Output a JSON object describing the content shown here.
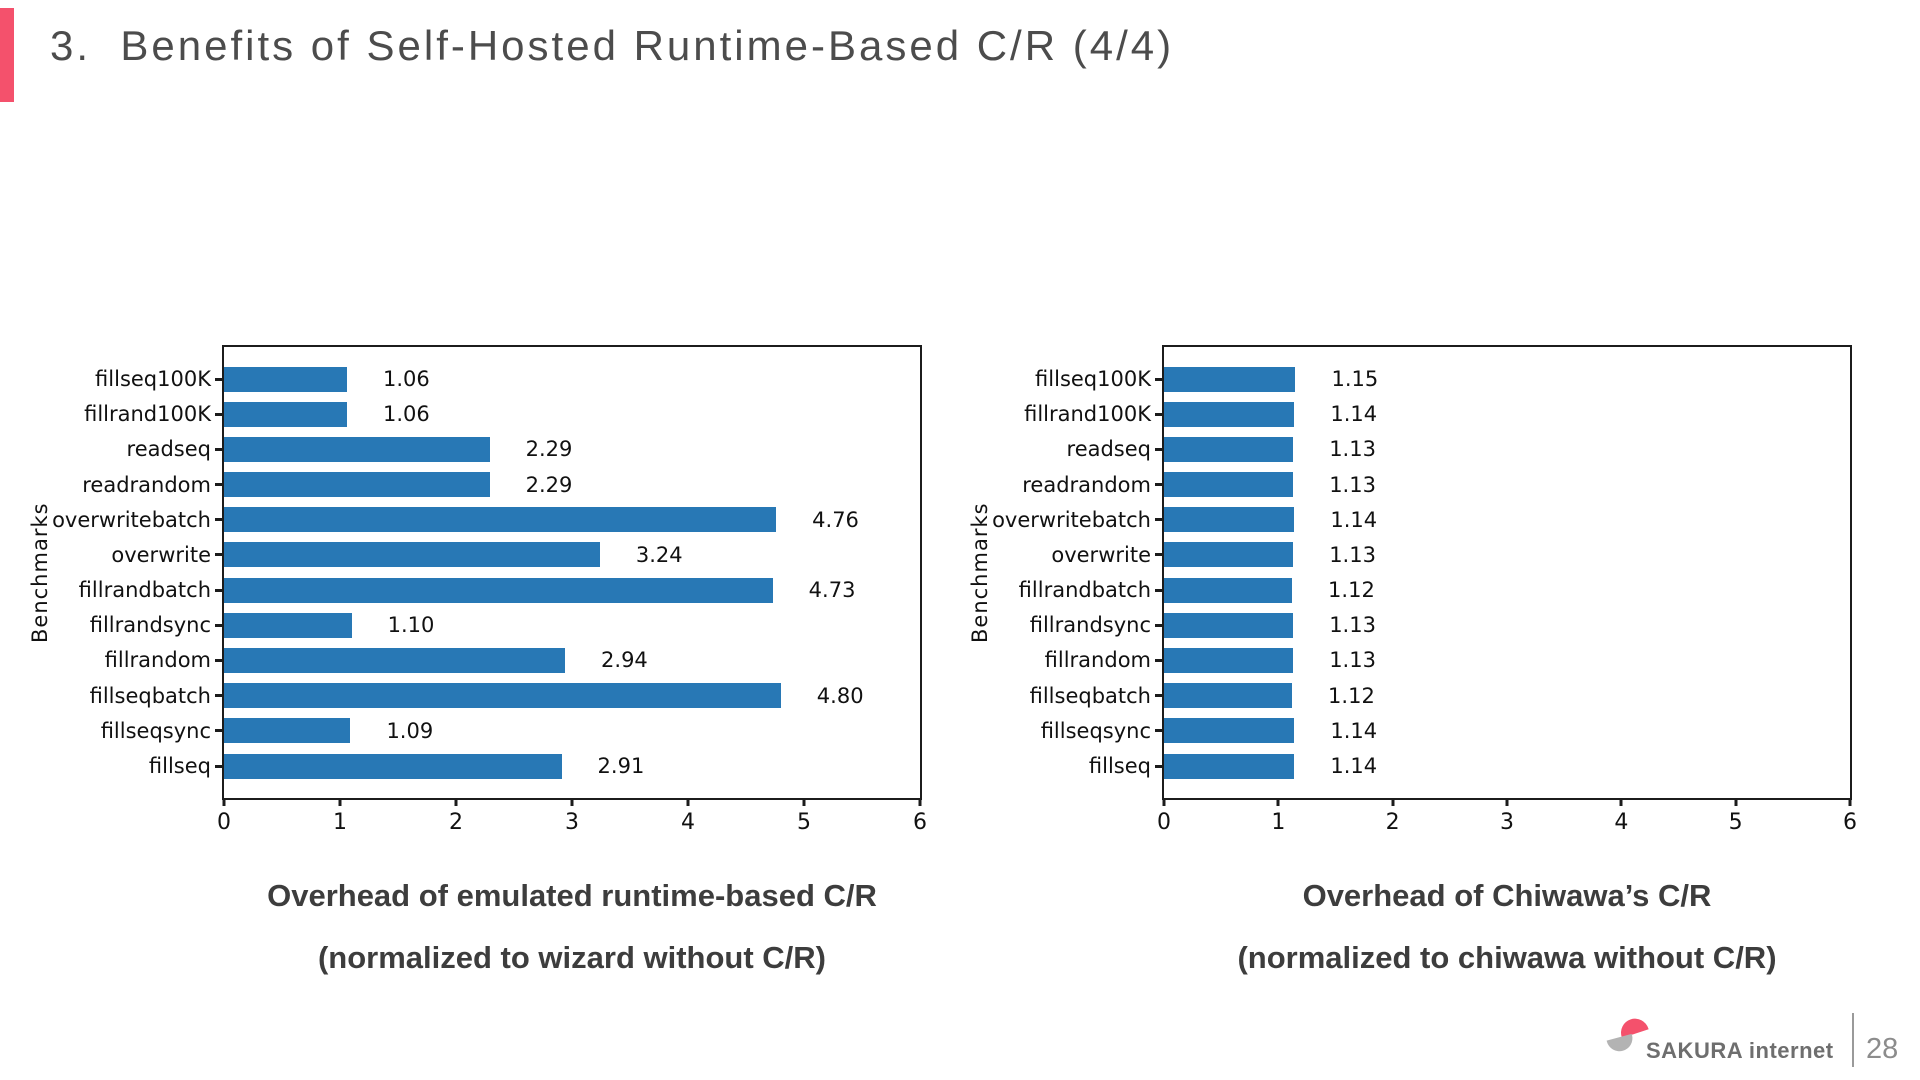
{
  "slide": {
    "title": "3.  Benefits of Self-Hosted Runtime-Based C/R (4/4)",
    "accent_color": "#f4516c",
    "footer": {
      "brand": "SAKURA internet",
      "page_number": "28"
    }
  },
  "icons": {
    "sakura_logo": "sakura-logo-icon"
  },
  "chart_data": [
    {
      "type": "bar",
      "orientation": "horizontal",
      "title": "Overhead of emulated runtime-based C/R",
      "subtitle": "(normalized to wizard without C/R)",
      "ylabel": "Benchmarks",
      "xlim": [
        0,
        6
      ],
      "xticks": [
        0,
        1,
        2,
        3,
        4,
        5,
        6
      ],
      "grid": false,
      "bar_color": "#2878b5",
      "categories": [
        "fillseq100K",
        "fillrand100K",
        "readseq",
        "readrandom",
        "overwritebatch",
        "overwrite",
        "fillrandbatch",
        "fillrandsync",
        "fillrandom",
        "fillseqbatch",
        "fillseqsync",
        "fillseq"
      ],
      "values": [
        1.06,
        1.06,
        2.29,
        2.29,
        4.76,
        3.24,
        4.73,
        1.1,
        2.94,
        4.8,
        1.09,
        2.91
      ],
      "value_labels": [
        "1.06",
        "1.06",
        "2.29",
        "2.29",
        "4.76",
        "3.24",
        "4.73",
        "1.10",
        "2.94",
        "4.80",
        "1.09",
        "2.91"
      ]
    },
    {
      "type": "bar",
      "orientation": "horizontal",
      "title": "Overhead of Chiwawa’s C/R",
      "subtitle": "(normalized to chiwawa without C/R)",
      "ylabel": "Benchmarks",
      "xlim": [
        0,
        6
      ],
      "xticks": [
        0,
        1,
        2,
        3,
        4,
        5,
        6
      ],
      "grid": false,
      "bar_color": "#2878b5",
      "categories": [
        "fillseq100K",
        "fillrand100K",
        "readseq",
        "readrandom",
        "overwritebatch",
        "overwrite",
        "fillrandbatch",
        "fillrandsync",
        "fillrandom",
        "fillseqbatch",
        "fillseqsync",
        "fillseq"
      ],
      "values": [
        1.15,
        1.14,
        1.13,
        1.13,
        1.14,
        1.13,
        1.12,
        1.13,
        1.13,
        1.12,
        1.14,
        1.14
      ],
      "value_labels": [
        "1.15",
        "1.14",
        "1.13",
        "1.13",
        "1.14",
        "1.13",
        "1.12",
        "1.13",
        "1.13",
        "1.12",
        "1.14",
        "1.14"
      ]
    }
  ]
}
